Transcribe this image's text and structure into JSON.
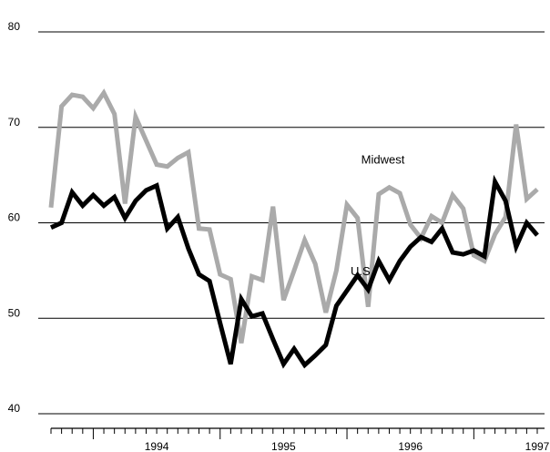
{
  "chart_data": {
    "type": "line",
    "title": "",
    "xlabel": "",
    "ylabel": "",
    "ylim": [
      40,
      80
    ],
    "yticks": [
      40,
      50,
      60,
      70,
      80
    ],
    "x_start": "1993-09",
    "x_end": "1997-07",
    "xtick_labels": [
      {
        "label": "1994",
        "date": "1994-07"
      },
      {
        "label": "1995",
        "date": "1995-07"
      },
      {
        "label": "1996",
        "date": "1996-07"
      },
      {
        "label": "1997",
        "date": "1997-07"
      }
    ],
    "grid": true,
    "legend": "inline labels",
    "series": [
      {
        "name": "U.S.",
        "color": "#000000",
        "label_date": "1996-01",
        "label_value": 54.5,
        "values": [
          {
            "x": "1993-09",
            "y": 59.5
          },
          {
            "x": "1993-10",
            "y": 60.0
          },
          {
            "x": "1993-11",
            "y": 63.2
          },
          {
            "x": "1993-12",
            "y": 61.8
          },
          {
            "x": "1994-01",
            "y": 62.9
          },
          {
            "x": "1994-02",
            "y": 61.8
          },
          {
            "x": "1994-03",
            "y": 62.7
          },
          {
            "x": "1994-04",
            "y": 60.5
          },
          {
            "x": "1994-05",
            "y": 62.3
          },
          {
            "x": "1994-06",
            "y": 63.4
          },
          {
            "x": "1994-07",
            "y": 63.9
          },
          {
            "x": "1994-08",
            "y": 59.4
          },
          {
            "x": "1994-09",
            "y": 60.6
          },
          {
            "x": "1994-10",
            "y": 57.3
          },
          {
            "x": "1994-11",
            "y": 54.6
          },
          {
            "x": "1994-12",
            "y": 53.9
          },
          {
            "x": "1995-01",
            "y": 49.5
          },
          {
            "x": "1995-02",
            "y": 45.2
          },
          {
            "x": "1995-03",
            "y": 52.0
          },
          {
            "x": "1995-04",
            "y": 50.2
          },
          {
            "x": "1995-05",
            "y": 50.5
          },
          {
            "x": "1995-06",
            "y": 47.8
          },
          {
            "x": "1995-07",
            "y": 45.2
          },
          {
            "x": "1995-08",
            "y": 46.8
          },
          {
            "x": "1995-09",
            "y": 45.1
          },
          {
            "x": "1995-10",
            "y": 46.1
          },
          {
            "x": "1995-11",
            "y": 47.2
          },
          {
            "x": "1995-12",
            "y": 51.3
          },
          {
            "x": "1996-01",
            "y": 52.9
          },
          {
            "x": "1996-02",
            "y": 54.5
          },
          {
            "x": "1996-03",
            "y": 53.0
          },
          {
            "x": "1996-04",
            "y": 56.0
          },
          {
            "x": "1996-05",
            "y": 54.0
          },
          {
            "x": "1996-06",
            "y": 56.0
          },
          {
            "x": "1996-07",
            "y": 57.5
          },
          {
            "x": "1996-08",
            "y": 58.5
          },
          {
            "x": "1996-09",
            "y": 58.0
          },
          {
            "x": "1996-10",
            "y": 59.4
          },
          {
            "x": "1996-11",
            "y": 56.9
          },
          {
            "x": "1996-12",
            "y": 56.7
          },
          {
            "x": "1997-01",
            "y": 57.1
          },
          {
            "x": "1997-02",
            "y": 56.5
          },
          {
            "x": "1997-03",
            "y": 64.3
          },
          {
            "x": "1997-04",
            "y": 62.3
          },
          {
            "x": "1997-05",
            "y": 57.5
          },
          {
            "x": "1997-06",
            "y": 60.0
          },
          {
            "x": "1997-07",
            "y": 58.7
          }
        ]
      },
      {
        "name": "Midwest",
        "color": "#aaaaaa",
        "label_date": "1996-02",
        "label_value": 66.2,
        "values": [
          {
            "x": "1993-09",
            "y": 61.6
          },
          {
            "x": "1993-10",
            "y": 72.2
          },
          {
            "x": "1993-11",
            "y": 73.4
          },
          {
            "x": "1993-12",
            "y": 73.2
          },
          {
            "x": "1994-01",
            "y": 72.0
          },
          {
            "x": "1994-02",
            "y": 73.6
          },
          {
            "x": "1994-03",
            "y": 71.4
          },
          {
            "x": "1994-04",
            "y": 62.0
          },
          {
            "x": "1994-05",
            "y": 71.1
          },
          {
            "x": "1994-06",
            "y": 68.6
          },
          {
            "x": "1994-07",
            "y": 66.1
          },
          {
            "x": "1994-08",
            "y": 65.9
          },
          {
            "x": "1994-09",
            "y": 66.8
          },
          {
            "x": "1994-10",
            "y": 67.4
          },
          {
            "x": "1994-11",
            "y": 59.4
          },
          {
            "x": "1994-12",
            "y": 59.3
          },
          {
            "x": "1995-01",
            "y": 54.6
          },
          {
            "x": "1995-02",
            "y": 54.1
          },
          {
            "x": "1995-03",
            "y": 47.4
          },
          {
            "x": "1995-04",
            "y": 54.4
          },
          {
            "x": "1995-05",
            "y": 54.0
          },
          {
            "x": "1995-06",
            "y": 61.7
          },
          {
            "x": "1995-07",
            "y": 51.9
          },
          {
            "x": "1995-08",
            "y": 55.0
          },
          {
            "x": "1995-09",
            "y": 58.2
          },
          {
            "x": "1995-10",
            "y": 55.7
          },
          {
            "x": "1995-11",
            "y": 50.6
          },
          {
            "x": "1995-12",
            "y": 55.0
          },
          {
            "x": "1996-01",
            "y": 61.9
          },
          {
            "x": "1996-02",
            "y": 60.5
          },
          {
            "x": "1996-03",
            "y": 51.2
          },
          {
            "x": "1996-04",
            "y": 63.0
          },
          {
            "x": "1996-05",
            "y": 63.7
          },
          {
            "x": "1996-06",
            "y": 63.1
          },
          {
            "x": "1996-07",
            "y": 59.8
          },
          {
            "x": "1996-08",
            "y": 58.4
          },
          {
            "x": "1996-09",
            "y": 60.7
          },
          {
            "x": "1996-10",
            "y": 60.0
          },
          {
            "x": "1996-11",
            "y": 62.9
          },
          {
            "x": "1996-12",
            "y": 61.5
          },
          {
            "x": "1997-01",
            "y": 56.6
          },
          {
            "x": "1997-02",
            "y": 56.0
          },
          {
            "x": "1997-03",
            "y": 58.8
          },
          {
            "x": "1997-04",
            "y": 60.6
          },
          {
            "x": "1997-05",
            "y": 70.3
          },
          {
            "x": "1997-06",
            "y": 62.5
          },
          {
            "x": "1997-07",
            "y": 63.5
          }
        ]
      }
    ]
  }
}
